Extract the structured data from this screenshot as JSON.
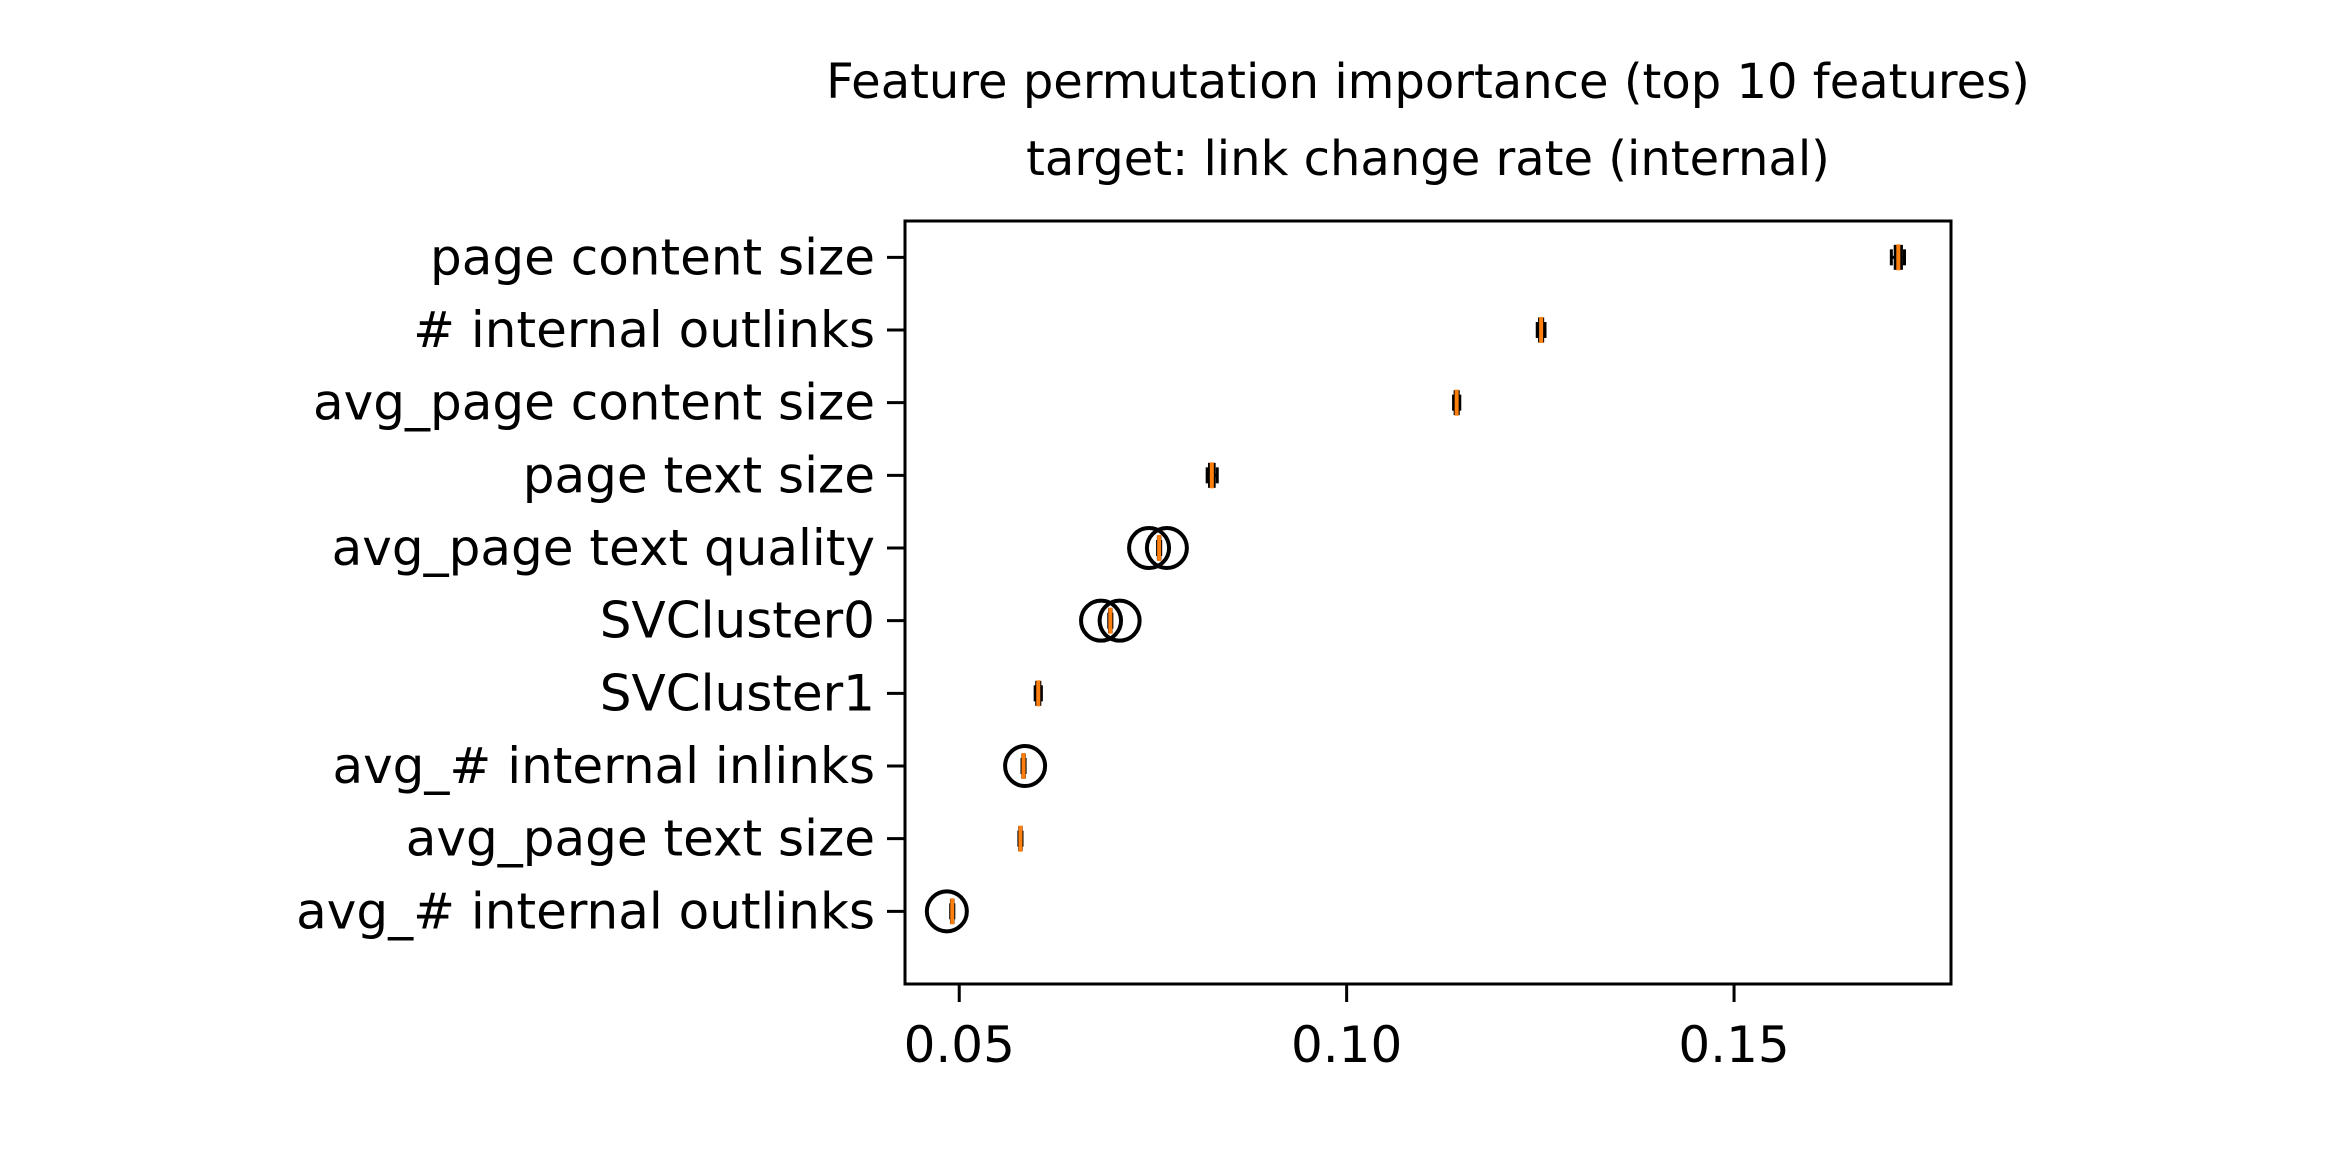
{
  "chart_data": {
    "type": "boxplot",
    "orientation": "horizontal",
    "title": "Feature permutation importance (top 10 features)",
    "subtitle": "target: link change rate (internal)",
    "xlabel": "",
    "ylabel": "",
    "xlim": [
      0.043,
      0.178
    ],
    "xticks": [
      0.05,
      0.1,
      0.15
    ],
    "xtick_labels": [
      "0.05",
      "0.10",
      "0.15"
    ],
    "grid": false,
    "colors": {
      "median": "#ff7f0e",
      "box": "#000000",
      "outlier": "#000000"
    },
    "categories": [
      "page content size",
      "# internal outlinks",
      "avg_page content size",
      "page text size",
      "avg_page text quality",
      "SVCluster0",
      "SVCluster1",
      "avg_# internal inlinks",
      "avg_page text size",
      "avg_# internal outlinks"
    ],
    "boxes": [
      {
        "whislo": 0.1703,
        "q1": 0.1708,
        "med": 0.1712,
        "q3": 0.1716,
        "whishi": 0.172,
        "fliers": []
      },
      {
        "whislo": 0.1246,
        "q1": 0.1249,
        "med": 0.1251,
        "q3": 0.1253,
        "whishi": 0.1256,
        "fliers": []
      },
      {
        "whislo": 0.1138,
        "q1": 0.114,
        "med": 0.1142,
        "q3": 0.1144,
        "whishi": 0.1146,
        "fliers": []
      },
      {
        "whislo": 0.082,
        "q1": 0.0823,
        "med": 0.0826,
        "q3": 0.0829,
        "whishi": 0.0833,
        "fliers": []
      },
      {
        "whislo": 0.0756,
        "q1": 0.0757,
        "med": 0.0758,
        "q3": 0.0759,
        "whishi": 0.076,
        "fliers": [
          0.0745,
          0.0768
        ]
      },
      {
        "whislo": 0.0693,
        "q1": 0.0694,
        "med": 0.0695,
        "q3": 0.0696,
        "whishi": 0.0697,
        "fliers": [
          0.0683,
          0.0707
        ]
      },
      {
        "whislo": 0.0598,
        "q1": 0.06,
        "med": 0.0602,
        "q3": 0.0604,
        "whishi": 0.0606,
        "fliers": []
      },
      {
        "whislo": 0.0581,
        "q1": 0.0582,
        "med": 0.0583,
        "q3": 0.0584,
        "whishi": 0.0585,
        "fliers": [
          0.0585
        ]
      },
      {
        "whislo": 0.0577,
        "q1": 0.0578,
        "med": 0.0579,
        "q3": 0.058,
        "whishi": 0.0581,
        "fliers": []
      },
      {
        "whislo": 0.0489,
        "q1": 0.049,
        "med": 0.0491,
        "q3": 0.0492,
        "whishi": 0.0493,
        "fliers": [
          0.0484
        ]
      }
    ]
  }
}
